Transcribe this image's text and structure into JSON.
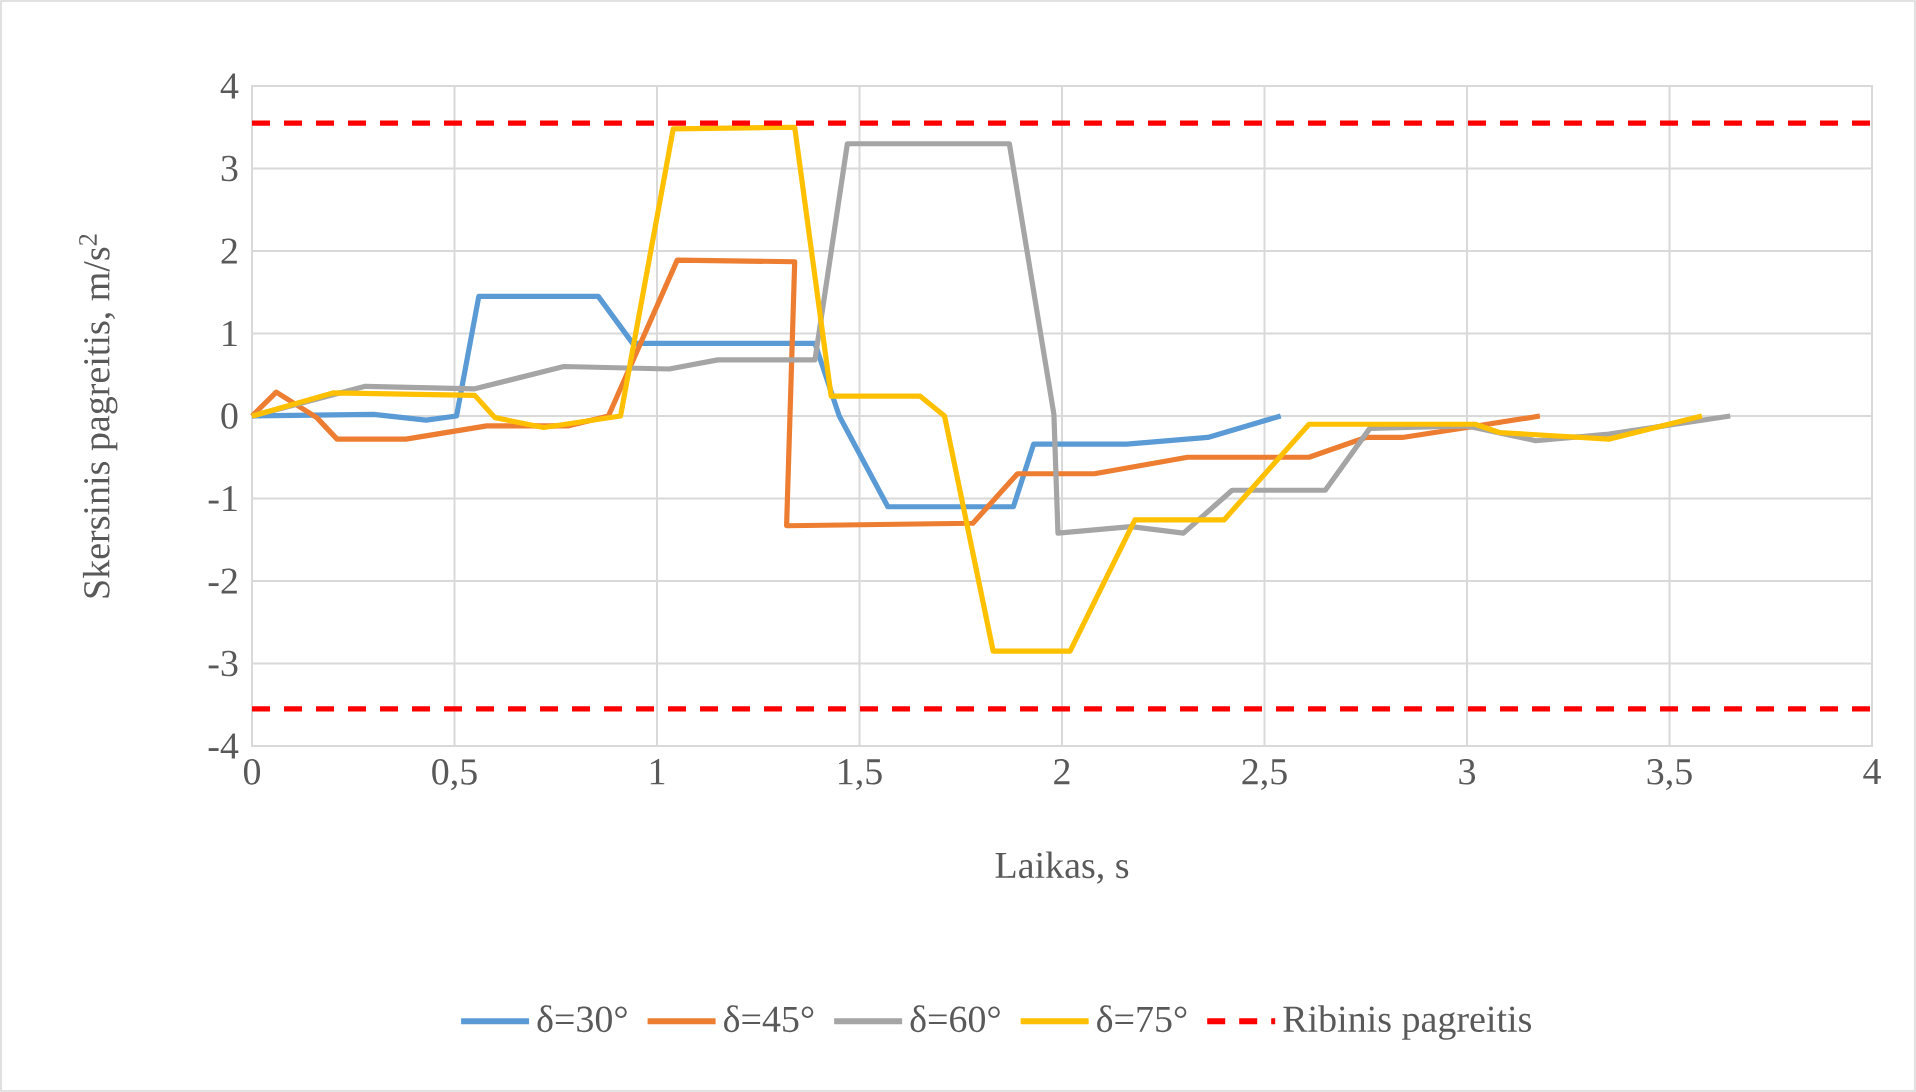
{
  "chart_data": {
    "type": "line",
    "xlabel": "Laikas, s",
    "ylabel": "Skersinis pagreitis, m/s$^{2}$",
    "xlim": [
      0,
      4
    ],
    "ylim": [
      -4,
      4
    ],
    "xticks": [
      0,
      {
        "value": 0.5,
        "label": "0,5"
      },
      1,
      {
        "value": 1.5,
        "label": "1,5"
      },
      2,
      {
        "value": 2.5,
        "label": "2,5"
      },
      3,
      {
        "value": 3.5,
        "label": "3,5"
      },
      4
    ],
    "yticks": [
      -4,
      -3,
      -2,
      -1,
      0,
      1,
      2,
      3,
      4
    ],
    "grid": true,
    "legend": "bottom",
    "series": [
      {
        "name": "δ=30°",
        "color": "#5b9bd5",
        "x": [
          0,
          0.3,
          0.43,
          0.505,
          0.56,
          0.855,
          0.94,
          1.39,
          1.45,
          1.57,
          1.88,
          1.93,
          2.16,
          2.36,
          2.54
        ],
        "values": [
          0,
          0.02,
          -0.05,
          0,
          1.45,
          1.45,
          0.88,
          0.88,
          0,
          -1.1,
          -1.1,
          -0.34,
          -0.34,
          -0.26,
          0
        ]
      },
      {
        "name": "δ=45°",
        "color": "#ed7d31",
        "x": [
          0,
          0.06,
          0.16,
          0.21,
          0.38,
          0.58,
          0.78,
          0.88,
          1.05,
          1.34,
          1.32,
          1.78,
          1.89,
          2.08,
          2.31,
          2.61,
          2.75,
          2.84,
          3.0,
          3.18
        ],
        "values": [
          0,
          0.29,
          -0.02,
          -0.28,
          -0.28,
          -0.12,
          -0.12,
          0,
          1.89,
          1.87,
          -1.33,
          -1.3,
          -0.7,
          -0.7,
          -0.5,
          -0.5,
          -0.26,
          -0.26,
          -0.14,
          0
        ]
      },
      {
        "name": "δ=60°",
        "color": "#a5a5a5",
        "x": [
          0,
          0.28,
          0.55,
          0.77,
          1.03,
          1.15,
          1.39,
          1.47,
          1.87,
          1.98,
          1.99,
          2.17,
          2.3,
          2.42,
          2.65,
          2.76,
          3.0,
          3.17,
          3.35,
          3.65
        ],
        "values": [
          0,
          0.36,
          0.33,
          0.6,
          0.57,
          0.68,
          0.68,
          3.3,
          3.3,
          0.02,
          -1.42,
          -1.34,
          -1.42,
          -0.9,
          -0.9,
          -0.15,
          -0.12,
          -0.3,
          -0.22,
          0
        ]
      },
      {
        "name": "δ=75°",
        "color": "#ffc000",
        "x": [
          0,
          0.2,
          0.55,
          0.6,
          0.72,
          0.91,
          1.04,
          1.34,
          1.43,
          1.65,
          1.71,
          1.83,
          2.02,
          2.18,
          2.4,
          2.61,
          3.02,
          3.08,
          3.35,
          3.58
        ],
        "values": [
          0,
          0.28,
          0.25,
          -0.02,
          -0.14,
          0,
          3.48,
          3.5,
          0.24,
          0.24,
          0,
          -2.85,
          -2.85,
          -1.26,
          -1.26,
          -0.1,
          -0.1,
          -0.2,
          -0.28,
          0
        ]
      }
    ],
    "ref_lines": [
      {
        "axis": "y",
        "value": 3.55,
        "label": "Ribinis pagreitis",
        "color": "#ff0000",
        "line_style": "dashed"
      },
      {
        "axis": "y",
        "value": -3.55,
        "color": "#ff0000",
        "line_style": "dashed"
      }
    ]
  }
}
